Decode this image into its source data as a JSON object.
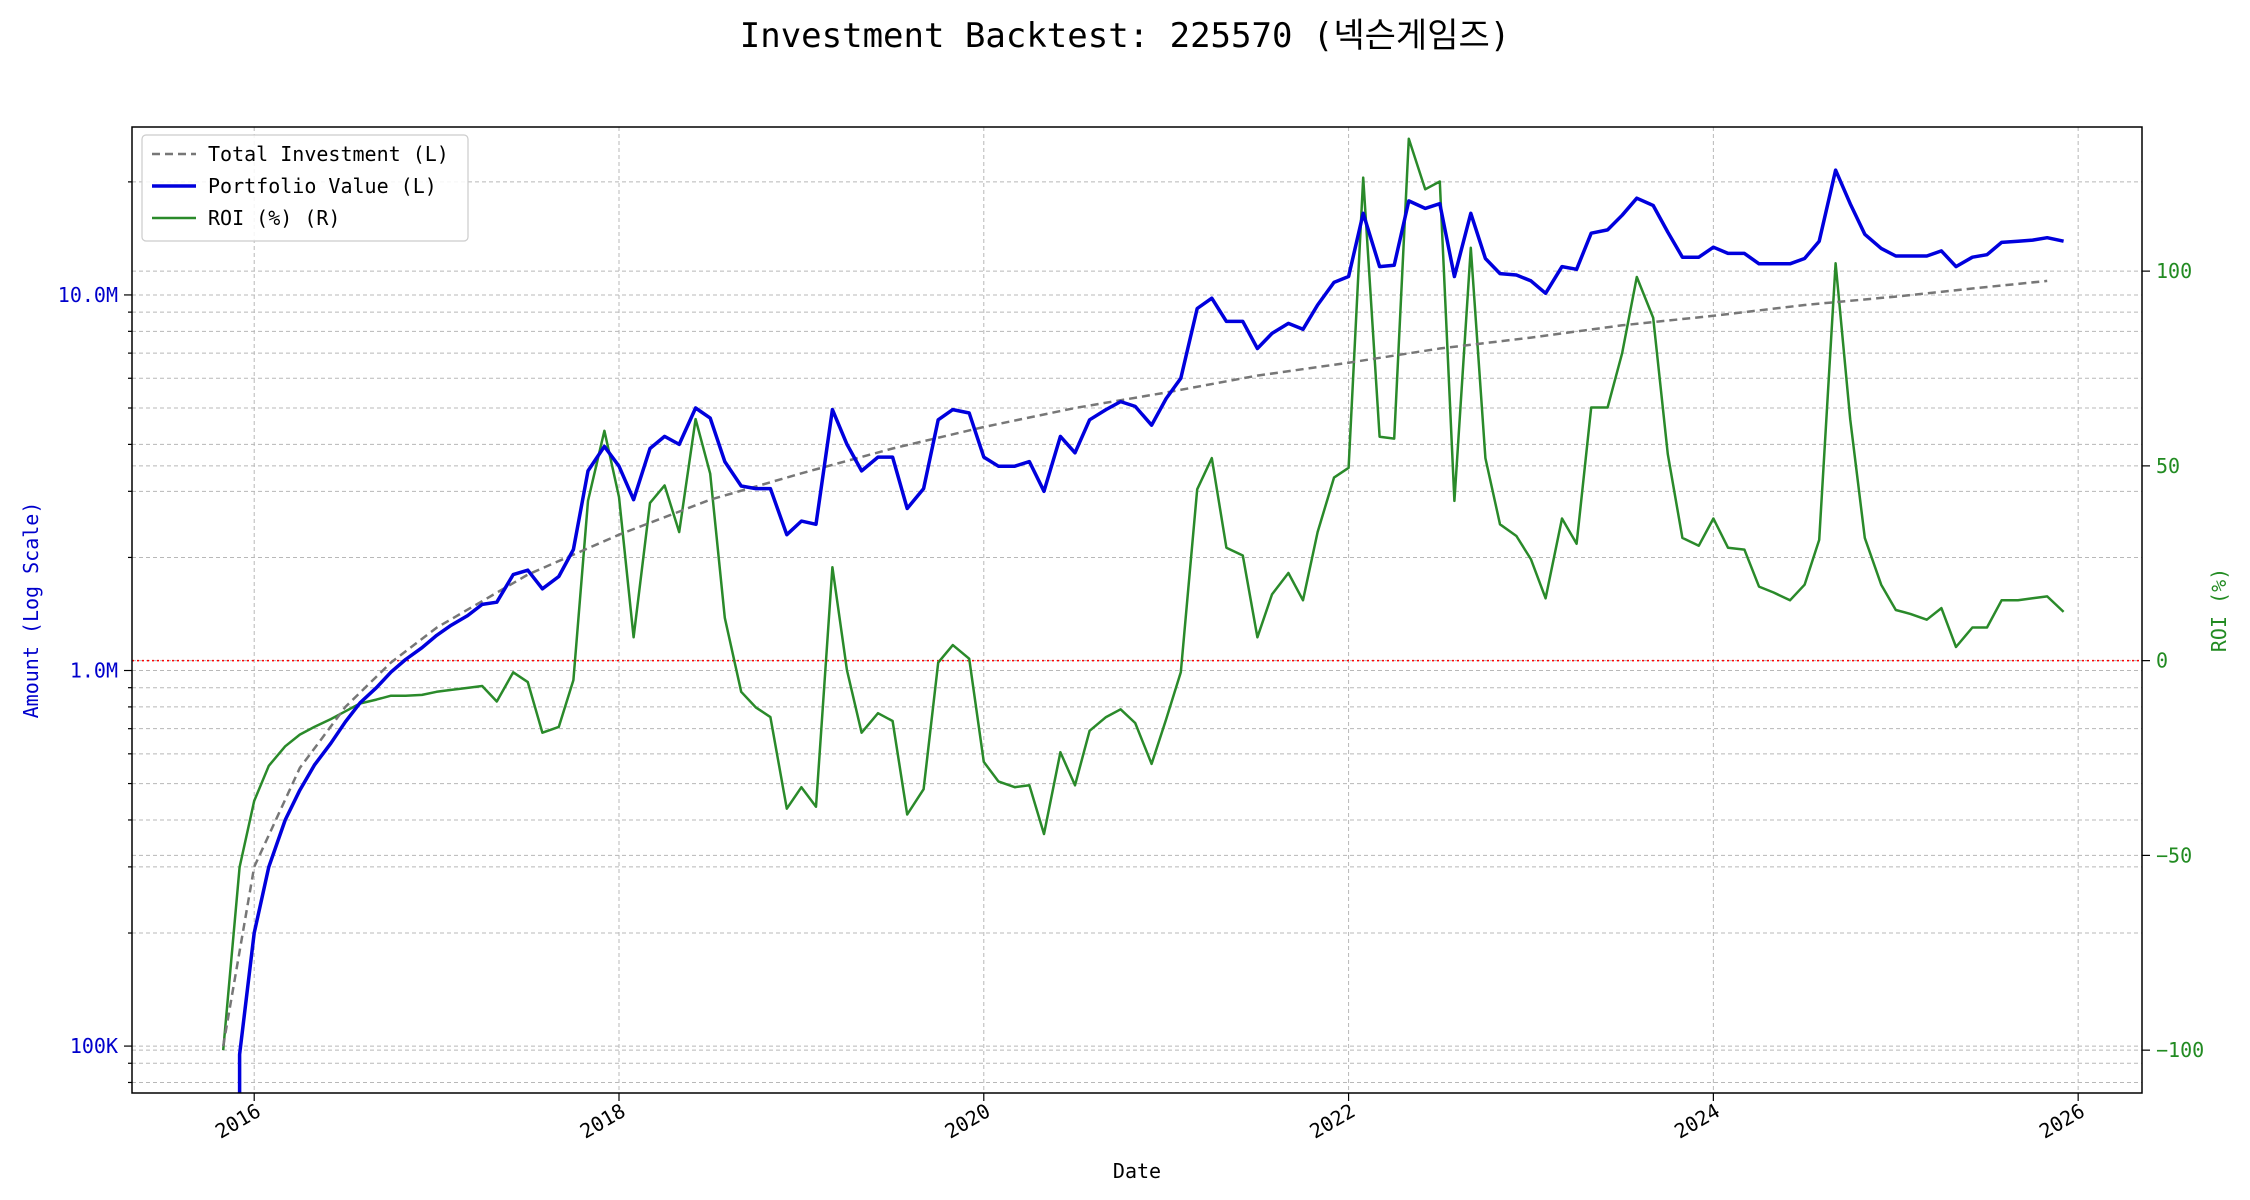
{
  "chart_data": {
    "type": "line",
    "title": "Investment Backtest: 225570 (넥슨게임즈)",
    "xlabel": "Date",
    "ylabel_left": "Amount (Log Scale)",
    "ylabel_right": "ROI (%)",
    "left_scale": "log",
    "left_ticks": [
      {
        "value": 100000,
        "label": "100K"
      },
      {
        "value": 1000000,
        "label": "1.0M"
      },
      {
        "value": 10000000,
        "label": "10.0M"
      }
    ],
    "right_ticks": [
      {
        "value": -100,
        "label": "−100"
      },
      {
        "value": -50,
        "label": "−50"
      },
      {
        "value": 0,
        "label": "0"
      },
      {
        "value": 50,
        "label": "50"
      },
      {
        "value": 100,
        "label": "100"
      }
    ],
    "x_ticks": [
      "2016",
      "2018",
      "2020",
      "2022",
      "2024",
      "2026"
    ],
    "xlim": [
      2015.33,
      2026.35
    ],
    "ylim_left": [
      75000,
      28000000
    ],
    "ylim_right": [
      -111,
      137
    ],
    "grid": true,
    "legend_position": "top-left",
    "reference_line": {
      "axis": "right",
      "value": 0,
      "color": "#ff0000",
      "style": "dotted"
    },
    "colors": {
      "total_investment": "#777777",
      "portfolio_value": "#0000dd",
      "roi": "#2a8a2a",
      "left_axis": "#0000cc",
      "right_axis": "#228b22",
      "reference": "#ff0000"
    },
    "series": [
      {
        "name": "Total Investment (L)",
        "axis": "left",
        "style": "dashed",
        "points": [
          [
            2015.83,
            100000
          ],
          [
            2016.0,
            300000
          ],
          [
            2016.25,
            550000
          ],
          [
            2016.5,
            800000
          ],
          [
            2016.75,
            1050000
          ],
          [
            2017.0,
            1300000
          ],
          [
            2017.5,
            1800000
          ],
          [
            2018.0,
            2300000
          ],
          [
            2018.5,
            2850000
          ],
          [
            2019.0,
            3350000
          ],
          [
            2019.5,
            3900000
          ],
          [
            2020.0,
            4450000
          ],
          [
            2020.5,
            5000000
          ],
          [
            2021.0,
            5500000
          ],
          [
            2021.5,
            6100000
          ],
          [
            2022.0,
            6600000
          ],
          [
            2022.5,
            7200000
          ],
          [
            2023.0,
            7700000
          ],
          [
            2023.5,
            8300000
          ],
          [
            2024.0,
            8800000
          ],
          [
            2024.5,
            9400000
          ],
          [
            2025.0,
            9900000
          ],
          [
            2025.5,
            10500000
          ],
          [
            2025.83,
            10900000
          ]
        ]
      },
      {
        "name": "Portfolio Value (L)",
        "axis": "left",
        "style": "solid",
        "points": [
          [
            2015.92,
            72000
          ],
          [
            2015.92,
            95000
          ],
          [
            2016.0,
            200000
          ],
          [
            2016.08,
            300000
          ],
          [
            2016.17,
            400000
          ],
          [
            2016.25,
            480000
          ],
          [
            2016.33,
            560000
          ],
          [
            2016.42,
            640000
          ],
          [
            2016.5,
            730000
          ],
          [
            2016.58,
            820000
          ],
          [
            2016.67,
            900000
          ],
          [
            2016.75,
            990000
          ],
          [
            2016.83,
            1070000
          ],
          [
            2016.92,
            1150000
          ],
          [
            2017.0,
            1240000
          ],
          [
            2017.08,
            1320000
          ],
          [
            2017.17,
            1400000
          ],
          [
            2017.25,
            1500000
          ],
          [
            2017.33,
            1520000
          ],
          [
            2017.42,
            1800000
          ],
          [
            2017.5,
            1850000
          ],
          [
            2017.58,
            1650000
          ],
          [
            2017.67,
            1780000
          ],
          [
            2017.75,
            2100000
          ],
          [
            2017.83,
            3400000
          ],
          [
            2017.92,
            3950000
          ],
          [
            2018.0,
            3500000
          ],
          [
            2018.08,
            2850000
          ],
          [
            2018.17,
            3900000
          ],
          [
            2018.25,
            4200000
          ],
          [
            2018.33,
            4000000
          ],
          [
            2018.42,
            5000000
          ],
          [
            2018.5,
            4700000
          ],
          [
            2018.58,
            3600000
          ],
          [
            2018.67,
            3100000
          ],
          [
            2018.75,
            3050000
          ],
          [
            2018.83,
            3050000
          ],
          [
            2018.92,
            2300000
          ],
          [
            2019.0,
            2500000
          ],
          [
            2019.08,
            2450000
          ],
          [
            2019.17,
            4950000
          ],
          [
            2019.25,
            4000000
          ],
          [
            2019.33,
            3400000
          ],
          [
            2019.42,
            3700000
          ],
          [
            2019.5,
            3700000
          ],
          [
            2019.58,
            2700000
          ],
          [
            2019.67,
            3050000
          ],
          [
            2019.75,
            4650000
          ],
          [
            2019.83,
            4950000
          ],
          [
            2019.92,
            4850000
          ],
          [
            2020.0,
            3700000
          ],
          [
            2020.08,
            3500000
          ],
          [
            2020.17,
            3500000
          ],
          [
            2020.25,
            3600000
          ],
          [
            2020.33,
            3000000
          ],
          [
            2020.42,
            4200000
          ],
          [
            2020.5,
            3800000
          ],
          [
            2020.58,
            4650000
          ],
          [
            2020.67,
            4950000
          ],
          [
            2020.75,
            5200000
          ],
          [
            2020.83,
            5050000
          ],
          [
            2020.92,
            4500000
          ],
          [
            2021.0,
            5300000
          ],
          [
            2021.08,
            6000000
          ],
          [
            2021.17,
            9200000
          ],
          [
            2021.25,
            9800000
          ],
          [
            2021.33,
            8500000
          ],
          [
            2021.42,
            8500000
          ],
          [
            2021.5,
            7200000
          ],
          [
            2021.58,
            7900000
          ],
          [
            2021.67,
            8400000
          ],
          [
            2021.75,
            8100000
          ],
          [
            2021.83,
            9400000
          ],
          [
            2021.92,
            10800000
          ],
          [
            2022.0,
            11200000
          ],
          [
            2022.08,
            16500000
          ],
          [
            2022.17,
            11900000
          ],
          [
            2022.25,
            12000000
          ],
          [
            2022.33,
            17800000
          ],
          [
            2022.42,
            17000000
          ],
          [
            2022.5,
            17500000
          ],
          [
            2022.58,
            11200000
          ],
          [
            2022.67,
            16500000
          ],
          [
            2022.75,
            12500000
          ],
          [
            2022.83,
            11400000
          ],
          [
            2022.92,
            11300000
          ],
          [
            2023.0,
            10900000
          ],
          [
            2023.08,
            10100000
          ],
          [
            2023.17,
            11900000
          ],
          [
            2023.25,
            11700000
          ],
          [
            2023.33,
            14600000
          ],
          [
            2023.42,
            14900000
          ],
          [
            2023.5,
            16300000
          ],
          [
            2023.58,
            18100000
          ],
          [
            2023.67,
            17300000
          ],
          [
            2023.75,
            14700000
          ],
          [
            2023.83,
            12600000
          ],
          [
            2023.92,
            12600000
          ],
          [
            2024.0,
            13400000
          ],
          [
            2024.08,
            12900000
          ],
          [
            2024.17,
            12900000
          ],
          [
            2024.25,
            12100000
          ],
          [
            2024.33,
            12100000
          ],
          [
            2024.42,
            12100000
          ],
          [
            2024.5,
            12500000
          ],
          [
            2024.58,
            13900000
          ],
          [
            2024.67,
            21500000
          ],
          [
            2024.75,
            17500000
          ],
          [
            2024.83,
            14500000
          ],
          [
            2024.92,
            13300000
          ],
          [
            2025.0,
            12700000
          ],
          [
            2025.08,
            12700000
          ],
          [
            2025.17,
            12700000
          ],
          [
            2025.25,
            13100000
          ],
          [
            2025.33,
            11900000
          ],
          [
            2025.42,
            12600000
          ],
          [
            2025.5,
            12800000
          ],
          [
            2025.58,
            13800000
          ],
          [
            2025.67,
            13900000
          ],
          [
            2025.75,
            14000000
          ],
          [
            2025.83,
            14200000
          ],
          [
            2025.92,
            13900000
          ]
        ]
      },
      {
        "name": "ROI (%) (R)",
        "axis": "right",
        "style": "solid",
        "points": [
          [
            2015.83,
            -100
          ],
          [
            2015.92,
            -53
          ],
          [
            2016.0,
            -36
          ],
          [
            2016.08,
            -27
          ],
          [
            2016.17,
            -22
          ],
          [
            2016.25,
            -19
          ],
          [
            2016.33,
            -17
          ],
          [
            2016.42,
            -15
          ],
          [
            2016.5,
            -13
          ],
          [
            2016.58,
            -11
          ],
          [
            2016.67,
            -10
          ],
          [
            2016.75,
            -9
          ],
          [
            2016.83,
            -9
          ],
          [
            2016.92,
            -8.8
          ],
          [
            2017.0,
            -8
          ],
          [
            2017.08,
            -7.5
          ],
          [
            2017.17,
            -7
          ],
          [
            2017.25,
            -6.5
          ],
          [
            2017.33,
            -10.5
          ],
          [
            2017.42,
            -3
          ],
          [
            2017.5,
            -5.5
          ],
          [
            2017.58,
            -18.5
          ],
          [
            2017.67,
            -17
          ],
          [
            2017.75,
            -5
          ],
          [
            2017.83,
            41
          ],
          [
            2017.92,
            59
          ],
          [
            2018.0,
            42
          ],
          [
            2018.08,
            6
          ],
          [
            2018.17,
            40.5
          ],
          [
            2018.25,
            45
          ],
          [
            2018.33,
            33
          ],
          [
            2018.42,
            62
          ],
          [
            2018.5,
            48
          ],
          [
            2018.58,
            11
          ],
          [
            2018.67,
            -8
          ],
          [
            2018.75,
            -12
          ],
          [
            2018.83,
            -14.5
          ],
          [
            2018.92,
            -38
          ],
          [
            2019.0,
            -32.5
          ],
          [
            2019.08,
            -37.5
          ],
          [
            2019.17,
            24
          ],
          [
            2019.25,
            -2.5
          ],
          [
            2019.33,
            -18.5
          ],
          [
            2019.42,
            -13.5
          ],
          [
            2019.5,
            -15.5
          ],
          [
            2019.58,
            -39.5
          ],
          [
            2019.67,
            -33
          ],
          [
            2019.75,
            -0.5
          ],
          [
            2019.83,
            4
          ],
          [
            2019.92,
            0.5
          ],
          [
            2020.0,
            -26
          ],
          [
            2020.08,
            -31
          ],
          [
            2020.17,
            -32.5
          ],
          [
            2020.25,
            -32
          ],
          [
            2020.33,
            -44.5
          ],
          [
            2020.42,
            -23.5
          ],
          [
            2020.5,
            -32
          ],
          [
            2020.58,
            -18
          ],
          [
            2020.67,
            -14.5
          ],
          [
            2020.75,
            -12.5
          ],
          [
            2020.83,
            -16
          ],
          [
            2020.92,
            -26.5
          ],
          [
            2021.0,
            -15
          ],
          [
            2021.08,
            -3
          ],
          [
            2021.17,
            44
          ],
          [
            2021.25,
            52
          ],
          [
            2021.33,
            29
          ],
          [
            2021.42,
            27
          ],
          [
            2021.5,
            6
          ],
          [
            2021.58,
            17
          ],
          [
            2021.67,
            22.5
          ],
          [
            2021.75,
            15.5
          ],
          [
            2021.83,
            33
          ],
          [
            2021.92,
            47
          ],
          [
            2022.0,
            49.5
          ],
          [
            2022.08,
            124
          ],
          [
            2022.17,
            57.5
          ],
          [
            2022.25,
            57
          ],
          [
            2022.33,
            134
          ],
          [
            2022.42,
            121
          ],
          [
            2022.5,
            123
          ],
          [
            2022.58,
            41
          ],
          [
            2022.67,
            106
          ],
          [
            2022.75,
            52
          ],
          [
            2022.83,
            35
          ],
          [
            2022.92,
            32
          ],
          [
            2023.0,
            26
          ],
          [
            2023.08,
            16
          ],
          [
            2023.17,
            36.5
          ],
          [
            2023.25,
            30
          ],
          [
            2023.33,
            65
          ],
          [
            2023.42,
            65
          ],
          [
            2023.5,
            79
          ],
          [
            2023.58,
            98.5
          ],
          [
            2023.67,
            88
          ],
          [
            2023.75,
            53
          ],
          [
            2023.83,
            31.5
          ],
          [
            2023.92,
            29.5
          ],
          [
            2024.0,
            36.5
          ],
          [
            2024.08,
            29
          ],
          [
            2024.17,
            28.5
          ],
          [
            2024.25,
            19
          ],
          [
            2024.33,
            17.5
          ],
          [
            2024.42,
            15.5
          ],
          [
            2024.5,
            19.5
          ],
          [
            2024.58,
            31
          ],
          [
            2024.67,
            102
          ],
          [
            2024.75,
            62
          ],
          [
            2024.83,
            31.5
          ],
          [
            2024.92,
            19.5
          ],
          [
            2025.0,
            13
          ],
          [
            2025.08,
            12
          ],
          [
            2025.17,
            10.5
          ],
          [
            2025.25,
            13.5
          ],
          [
            2025.33,
            3.5
          ],
          [
            2025.42,
            8.5
          ],
          [
            2025.5,
            8.5
          ],
          [
            2025.58,
            15.5
          ],
          [
            2025.67,
            15.5
          ],
          [
            2025.75,
            16
          ],
          [
            2025.83,
            16.5
          ],
          [
            2025.92,
            12.5
          ]
        ]
      }
    ]
  }
}
